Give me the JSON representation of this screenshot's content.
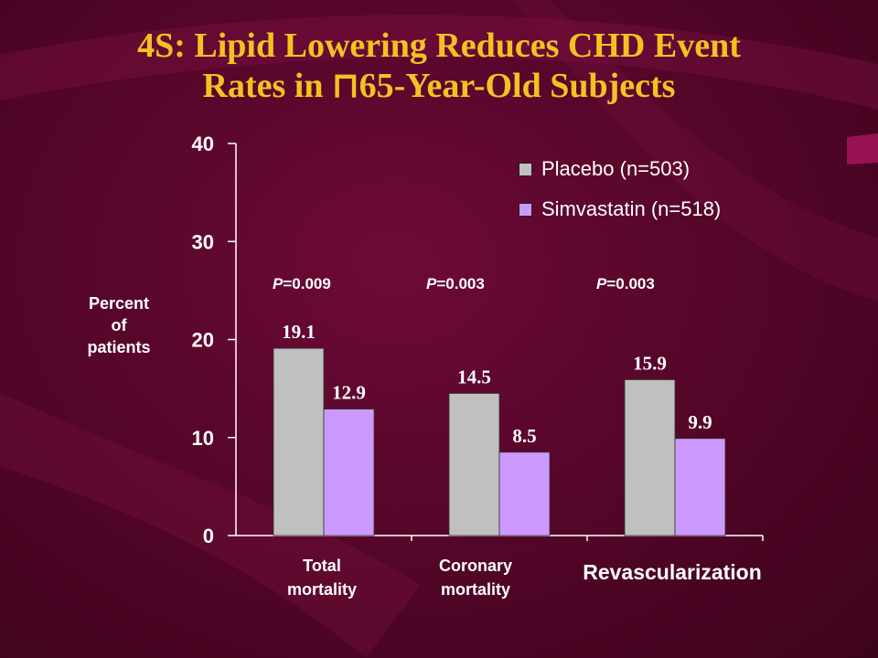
{
  "slide": {
    "title_line1": "4S: Lipid Lowering Reduces CHD Event",
    "title_line2": "Rates in ⊓65-Year-Old Subjects"
  },
  "chart_data": {
    "type": "bar",
    "ylabel": "Percent of patients",
    "ylabel_lines": [
      "Percent",
      "of",
      "patients"
    ],
    "ylim": [
      0,
      40
    ],
    "yticks": [
      "0",
      "10",
      "20",
      "30",
      "40"
    ],
    "categories": [
      "Total mortality",
      "Coronary mortality",
      "Revascularization"
    ],
    "category_lines": [
      [
        "Total",
        "mortality"
      ],
      [
        "Coronary",
        "mortality"
      ],
      [
        "Revascularization"
      ]
    ],
    "series": [
      {
        "name": "Placebo (n=503)",
        "color": "#c0c0c0",
        "values": [
          19.1,
          14.5,
          15.9
        ],
        "labels": [
          "19.1",
          "14.5",
          "15.9"
        ]
      },
      {
        "name": "Simvastatin (n=518)",
        "color": "#cc99ff",
        "values": [
          12.9,
          8.5,
          9.9
        ],
        "labels": [
          "12.9",
          "8.5",
          "9.9"
        ]
      }
    ],
    "p_values": [
      "=0.009",
      "=0.003",
      "=0.003"
    ],
    "p_prefix": "P",
    "legend_position": "top-right",
    "grid": false,
    "title_color": "#f3c221",
    "background_color": "#5a0628"
  }
}
